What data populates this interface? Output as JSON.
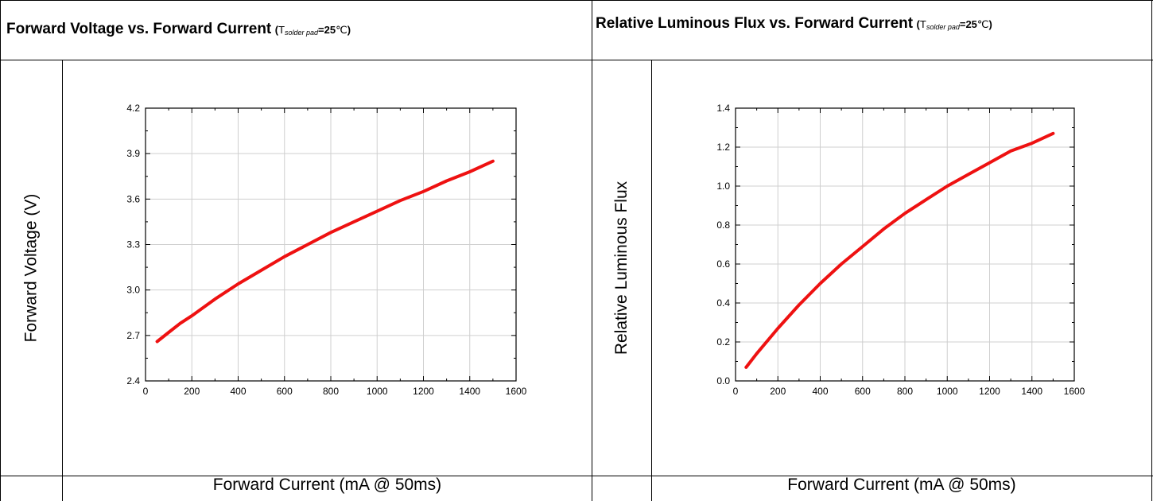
{
  "panels": [
    {
      "title": "Forward Voltage vs. Forward Current",
      "condition": {
        "open": "(",
        "symbol": "T",
        "subscript": "solder pad",
        "value": "=25",
        "unit": "℃",
        "close": ")"
      },
      "ylabel": "Forward Voltage (V)",
      "xlabel": "Forward Current (mA @ 50ms)"
    },
    {
      "title": "Relative Luminous Flux vs. Forward Current",
      "condition": {
        "open": "(",
        "symbol": "T",
        "subscript": "solder pad",
        "value": "=25",
        "unit": "℃",
        "close": ")"
      },
      "ylabel": "Relative Luminous Flux",
      "xlabel": "Forward Current (mA @ 50ms)"
    }
  ],
  "chart_data": [
    {
      "type": "line",
      "title": "Forward Voltage vs. Forward Current",
      "xlabel": "Forward Current (mA @ 50ms)",
      "ylabel": "Forward Voltage (V)",
      "xlim": [
        0,
        1600
      ],
      "ylim": [
        2.4,
        4.2
      ],
      "xticks": [
        0,
        200,
        400,
        600,
        800,
        1000,
        1200,
        1400,
        1600
      ],
      "yticks": [
        2.4,
        2.7,
        3.0,
        3.3,
        3.6,
        3.9,
        4.2
      ],
      "ytick_labels": [
        "2.4",
        "2.7",
        "3.0",
        "3.3",
        "3.6",
        "3.9",
        "4.2"
      ],
      "grid": true,
      "color": "#ee1111",
      "series": [
        {
          "x": [
            50,
            100,
            150,
            200,
            300,
            400,
            500,
            600,
            700,
            800,
            900,
            1000,
            1100,
            1200,
            1300,
            1400,
            1500
          ],
          "y": [
            2.66,
            2.72,
            2.78,
            2.83,
            2.94,
            3.04,
            3.13,
            3.22,
            3.3,
            3.38,
            3.45,
            3.52,
            3.59,
            3.65,
            3.72,
            3.78,
            3.85
          ]
        }
      ]
    },
    {
      "type": "line",
      "title": "Relative Luminous Flux vs. Forward Current",
      "xlabel": "Forward Current (mA @ 50ms)",
      "ylabel": "Relative Luminous Flux",
      "xlim": [
        0,
        1600
      ],
      "ylim": [
        0.0,
        1.4
      ],
      "xticks": [
        0,
        200,
        400,
        600,
        800,
        1000,
        1200,
        1400,
        1600
      ],
      "yticks": [
        0.0,
        0.2,
        0.4,
        0.6,
        0.8,
        1.0,
        1.2,
        1.4
      ],
      "ytick_labels": [
        "0.0",
        "0.2",
        "0.4",
        "0.6",
        "0.8",
        "1.0",
        "1.2",
        "1.4"
      ],
      "grid": true,
      "color": "#ee1111",
      "series": [
        {
          "x": [
            50,
            100,
            200,
            300,
            400,
            500,
            600,
            700,
            800,
            900,
            1000,
            1100,
            1200,
            1300,
            1400,
            1500
          ],
          "y": [
            0.07,
            0.14,
            0.27,
            0.39,
            0.5,
            0.6,
            0.69,
            0.78,
            0.86,
            0.93,
            1.0,
            1.06,
            1.12,
            1.18,
            1.22,
            1.27
          ]
        }
      ]
    }
  ]
}
